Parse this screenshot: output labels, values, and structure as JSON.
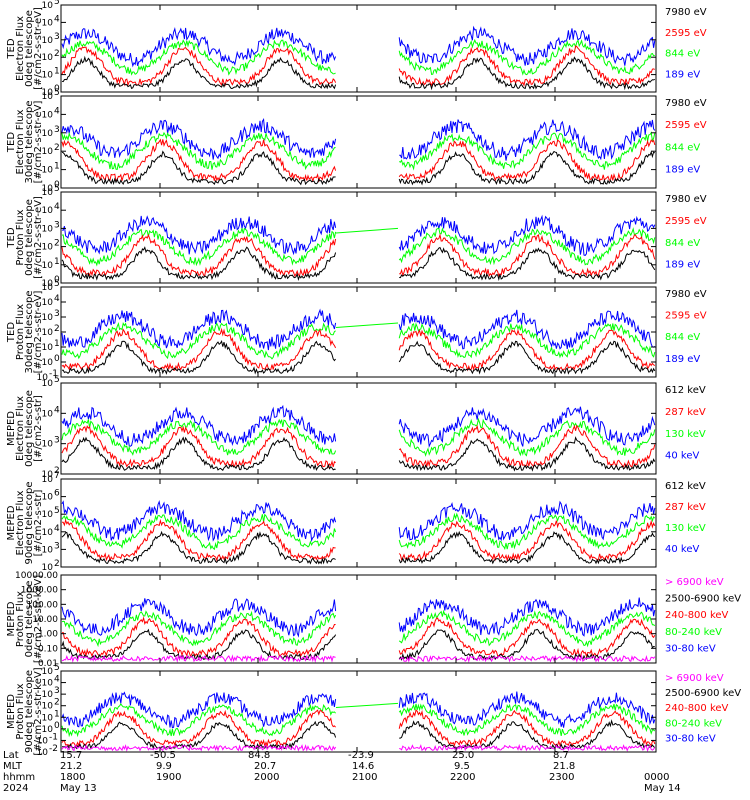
{
  "colors": {
    "blue": "#0000ff",
    "red": "#ff0000",
    "green": "#00ff00",
    "black": "#000000",
    "magenta": "#ff00ff"
  },
  "chart_data": [
    {
      "type": "line",
      "ylabel_lines": [
        "TED",
        "Electron Flux",
        "0deg telescope",
        "[#/cm2-s-str-eV]"
      ],
      "ylim": [
        1,
        100000
      ],
      "yscale": "log",
      "ytick_labels": [
        "10^0",
        "10^1",
        "10^2",
        "10^3",
        "10^4",
        "10^5"
      ],
      "series": [
        {
          "name": "7980 eV",
          "color": "black"
        },
        {
          "name": "2595 eV",
          "color": "red"
        },
        {
          "name": "844 eV",
          "color": "green"
        },
        {
          "name": "189 eV",
          "color": "blue"
        }
      ]
    },
    {
      "type": "line",
      "ylabel_lines": [
        "TED",
        "Electron Flux",
        "30deg telescope",
        "[#/cm2-s-str-eV]"
      ],
      "ylim": [
        1,
        100000
      ],
      "yscale": "log",
      "ytick_labels": [
        "10^0",
        "10^1",
        "10^2",
        "10^3",
        "10^4",
        "10^5"
      ],
      "series": [
        {
          "name": "7980 eV",
          "color": "black"
        },
        {
          "name": "2595 eV",
          "color": "red"
        },
        {
          "name": "844 eV",
          "color": "green"
        },
        {
          "name": "189 eV",
          "color": "blue"
        }
      ]
    },
    {
      "type": "line",
      "ylabel_lines": [
        "TED",
        "Proton Flux",
        "0deg telescope",
        "[#/cm2-s-str-eV]"
      ],
      "ylim": [
        1,
        100000
      ],
      "yscale": "log",
      "ytick_labels": [
        "10^0",
        "10^1",
        "10^2",
        "10^3",
        "10^4",
        "10^5"
      ],
      "series": [
        {
          "name": "7980 eV",
          "color": "black"
        },
        {
          "name": "2595 eV",
          "color": "red"
        },
        {
          "name": "844 eV",
          "color": "green"
        },
        {
          "name": "189 eV",
          "color": "blue"
        }
      ]
    },
    {
      "type": "line",
      "ylabel_lines": [
        "TED",
        "Proton Flux",
        "30deg telescope",
        "[#/cm2-s-str-eV]"
      ],
      "ylim": [
        0.1,
        100000
      ],
      "yscale": "log",
      "ytick_labels": [
        "10^-1",
        "10^0",
        "10^1",
        "10^2",
        "10^3",
        "10^4",
        "10^5"
      ],
      "series": [
        {
          "name": "7980 eV",
          "color": "black"
        },
        {
          "name": "2595 eV",
          "color": "red"
        },
        {
          "name": "844 eV",
          "color": "green"
        },
        {
          "name": "189 eV",
          "color": "blue"
        }
      ]
    },
    {
      "type": "line",
      "ylabel_lines": [
        "MEPED",
        "Electron Flux",
        "0deg telescope",
        "[#/cm2-s-str]"
      ],
      "ylim": [
        100,
        100000
      ],
      "yscale": "log",
      "ytick_labels": [
        "10^2",
        "10^3",
        "10^4",
        "10^5"
      ],
      "series": [
        {
          "name": "612 keV",
          "color": "black"
        },
        {
          "name": "287 keV",
          "color": "red"
        },
        {
          "name": "130 keV",
          "color": "green"
        },
        {
          "name": "40 keV",
          "color": "blue"
        }
      ]
    },
    {
      "type": "line",
      "ylabel_lines": [
        "MEPED",
        "Electron Flux",
        "90deg telescope",
        "[#/cm2-s-str]"
      ],
      "ylim": [
        100,
        10000000
      ],
      "yscale": "log",
      "ytick_labels": [
        "10^2",
        "10^3",
        "10^4",
        "10^5",
        "10^6",
        "10^7"
      ],
      "series": [
        {
          "name": "612 keV",
          "color": "black"
        },
        {
          "name": "287 keV",
          "color": "red"
        },
        {
          "name": "130 keV",
          "color": "green"
        },
        {
          "name": "40 keV",
          "color": "blue"
        }
      ]
    },
    {
      "type": "line",
      "ylabel_lines": [
        "MEPED",
        "Proton Flux",
        "0deg telescope",
        "[#/cm2-s-str-keV]"
      ],
      "ylim": [
        0.01,
        10000
      ],
      "yscale": "log",
      "ytick_labels": [
        "0.01",
        "0.10",
        "1.00",
        "10.00",
        "100.00",
        "1000.00",
        "10000.00"
      ],
      "series": [
        {
          "name": "> 6900 keV",
          "color": "magenta"
        },
        {
          "name": "2500-6900 keV",
          "color": "black"
        },
        {
          "name": "240-800 keV",
          "color": "red"
        },
        {
          "name": "80-240 keV",
          "color": "green"
        },
        {
          "name": "30-80 keV",
          "color": "blue"
        }
      ]
    },
    {
      "type": "line",
      "ylabel_lines": [
        "MEPED",
        "Proton Flux",
        "90deg telescope",
        "[#/cm2-s-str-keV]"
      ],
      "ylim": [
        0.01,
        100000
      ],
      "yscale": "log",
      "ytick_labels": [
        "10^-2",
        "10^-1",
        "10^0",
        "10^1",
        "10^2",
        "10^3",
        "10^4",
        "10^5"
      ],
      "series": [
        {
          "name": "> 6900 keV",
          "color": "magenta"
        },
        {
          "name": "2500-6900 keV",
          "color": "black"
        },
        {
          "name": "240-800 keV",
          "color": "red"
        },
        {
          "name": "80-240 keV",
          "color": "green"
        },
        {
          "name": "30-80 keV",
          "color": "blue"
        }
      ]
    }
  ],
  "x_axis": {
    "row_labels": [
      "Lat",
      "MLT",
      "hhmm",
      "2024"
    ],
    "lat": [
      "15.7",
      "-50.5",
      "84.8",
      "-23.9",
      "25.0",
      "8.7"
    ],
    "mlt": [
      "21.2",
      "9.9",
      "20.7",
      "14.6",
      "9.5",
      "21.8"
    ],
    "hhmm": [
      "1800",
      "1900",
      "2000",
      "2100",
      "2200",
      "2300",
      "0000"
    ],
    "dates": [
      "May 13",
      "May 14"
    ]
  }
}
